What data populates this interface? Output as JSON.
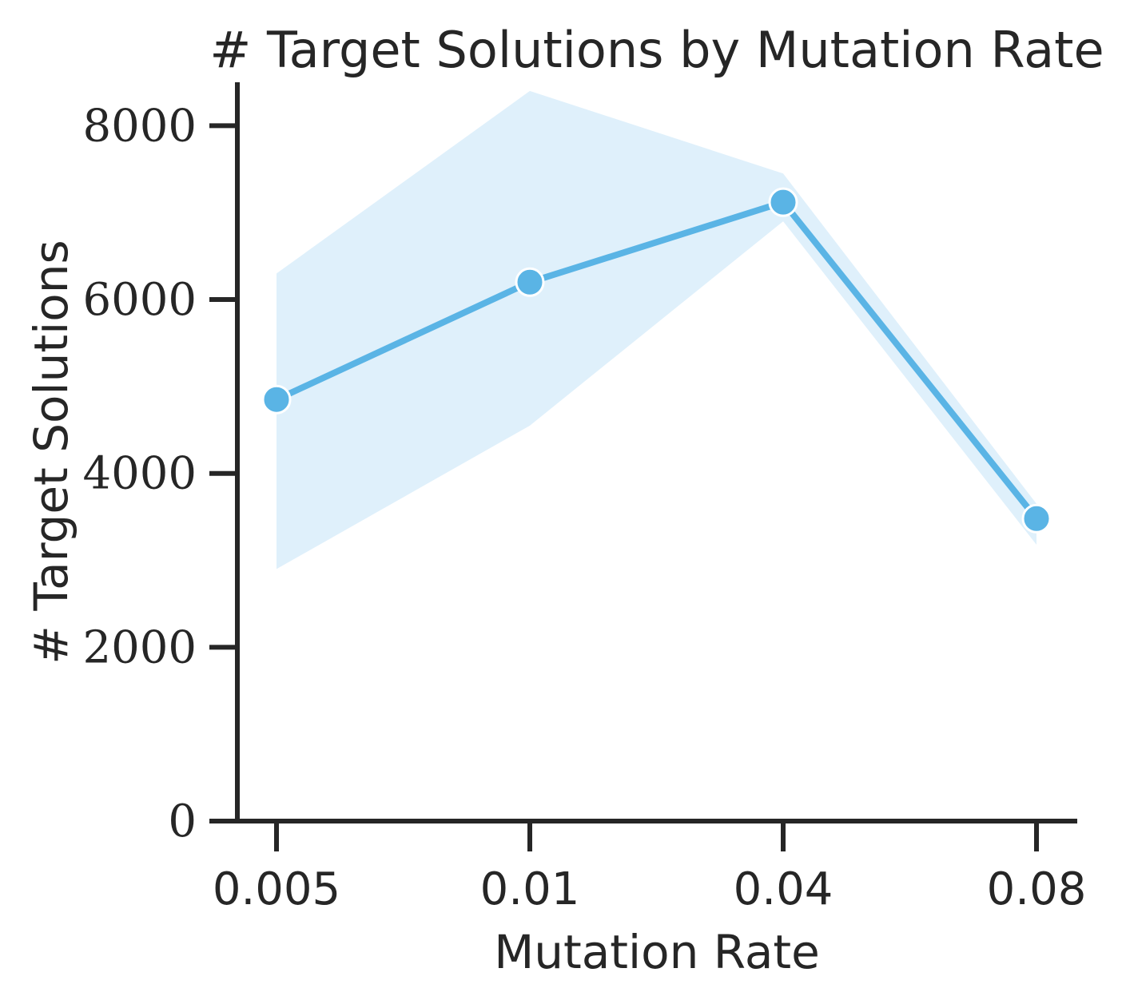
{
  "chart_data": {
    "type": "line",
    "title": "# Target Solutions by Mutation Rate",
    "xlabel": "Mutation Rate",
    "ylabel": "# Target Solutions",
    "categories": [
      "0.005",
      "0.01",
      "0.04",
      "0.08"
    ],
    "yticks": [
      "0",
      "2000",
      "4000",
      "6000",
      "8000"
    ],
    "ylim": [
      0,
      8500
    ],
    "grid": false,
    "series": [
      {
        "values": [
          4850,
          6200,
          7120,
          3480
        ],
        "ci_upper": [
          6300,
          8400,
          7450,
          3650
        ],
        "ci_lower": [
          2900,
          4550,
          6900,
          3180
        ]
      }
    ],
    "colors": {
      "line": "#5ab4e5",
      "band": "#dff0fb",
      "marker_edge": "#ffffff",
      "axis": "#262626"
    }
  }
}
